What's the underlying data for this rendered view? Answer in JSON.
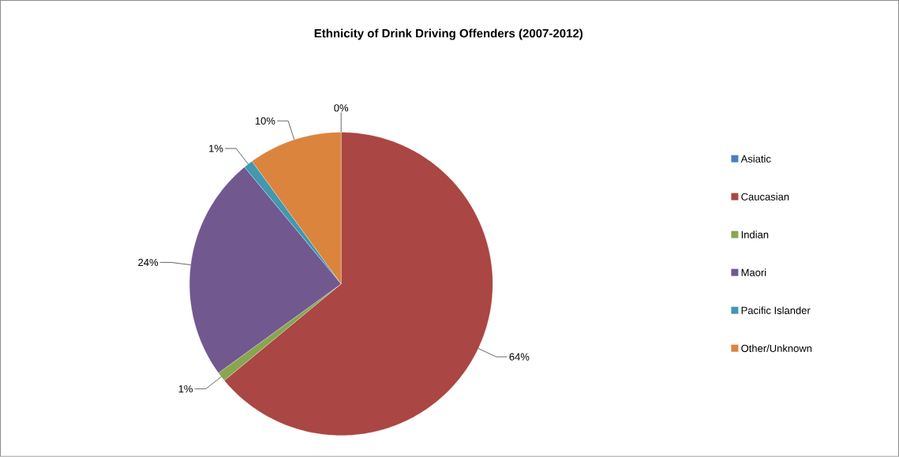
{
  "chart_data": {
    "type": "pie",
    "title": "Ethnicity of Drink Driving Offenders (2007-2012)",
    "categories": [
      "Asiatic",
      "Caucasian",
      "Indian",
      "Maori",
      "Pacific Islander",
      "Other/Unknown"
    ],
    "values": [
      0,
      64,
      1,
      24,
      1,
      10
    ],
    "value_labels": [
      "0%",
      "64%",
      "1%",
      "24%",
      "1%",
      "10%"
    ],
    "colors": [
      "#4a7ebb",
      "#aa4643",
      "#89a54e",
      "#71588f",
      "#4198af",
      "#db843d"
    ],
    "legend": "right"
  }
}
